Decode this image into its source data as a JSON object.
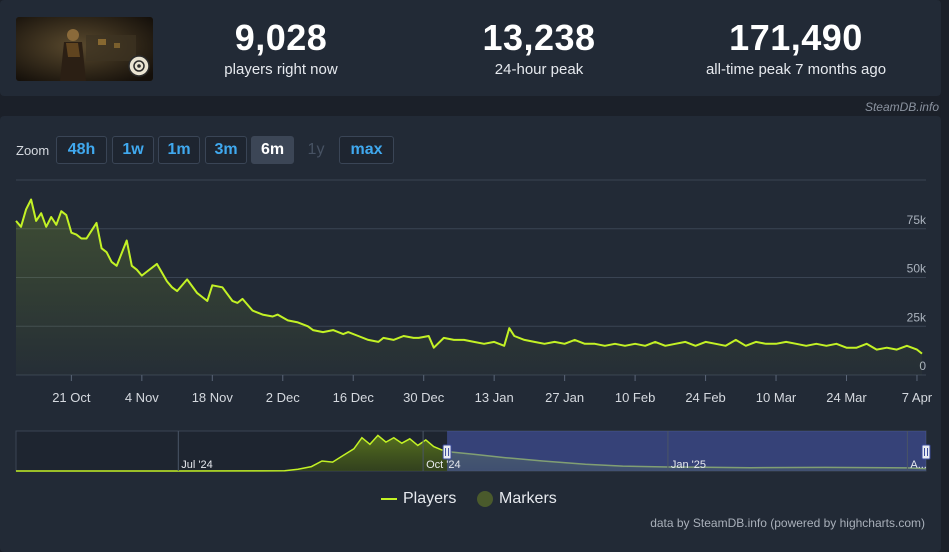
{
  "stats": [
    {
      "value": "9,028",
      "label": "players right now"
    },
    {
      "value": "13,238",
      "label": "24-hour peak"
    },
    {
      "value": "171,490",
      "label": "all-time peak 7 months ago"
    }
  ],
  "credit_top": "SteamDB.info",
  "zoom": {
    "label": "Zoom",
    "buttons": [
      {
        "label": "48h",
        "state": "normal"
      },
      {
        "label": "1w",
        "state": "normal"
      },
      {
        "label": "1m",
        "state": "normal"
      },
      {
        "label": "3m",
        "state": "normal"
      },
      {
        "label": "6m",
        "state": "active"
      },
      {
        "label": "1y",
        "state": "disabled"
      },
      {
        "label": "max",
        "state": "normal"
      }
    ]
  },
  "chart_data": {
    "type": "area",
    "series": [
      {
        "name": "Players",
        "color": "#c3f225",
        "x": [
          "2024-10-10",
          "2024-10-11",
          "2024-10-12",
          "2024-10-13",
          "2024-10-14",
          "2024-10-15",
          "2024-10-16",
          "2024-10-17",
          "2024-10-18",
          "2024-10-19",
          "2024-10-20",
          "2024-10-21",
          "2024-10-22",
          "2024-10-23",
          "2024-10-24",
          "2024-10-25",
          "2024-10-26",
          "2024-10-27",
          "2024-10-28",
          "2024-10-29",
          "2024-10-30",
          "2024-11-01",
          "2024-11-02",
          "2024-11-03",
          "2024-11-04",
          "2024-11-05",
          "2024-11-07",
          "2024-11-09",
          "2024-11-10",
          "2024-11-11",
          "2024-11-13",
          "2024-11-15",
          "2024-11-16",
          "2024-11-17",
          "2024-11-18",
          "2024-11-20",
          "2024-11-22",
          "2024-11-23",
          "2024-11-24",
          "2024-11-26",
          "2024-11-28",
          "2024-11-30",
          "2024-12-01",
          "2024-12-03",
          "2024-12-05",
          "2024-12-07",
          "2024-12-08",
          "2024-12-10",
          "2024-12-12",
          "2024-12-14",
          "2024-12-15",
          "2024-12-17",
          "2024-12-19",
          "2024-12-21",
          "2024-12-22",
          "2024-12-24",
          "2024-12-26",
          "2024-12-28",
          "2024-12-29",
          "2024-12-31",
          "2025-01-01",
          "2025-01-03",
          "2025-01-05",
          "2025-01-07",
          "2025-01-09",
          "2025-01-11",
          "2025-01-13",
          "2025-01-15",
          "2025-01-16",
          "2025-01-17",
          "2025-01-19",
          "2025-01-21",
          "2025-01-23",
          "2025-01-25",
          "2025-01-27",
          "2025-01-29",
          "2025-01-31",
          "2025-02-02",
          "2025-02-04",
          "2025-02-06",
          "2025-02-08",
          "2025-02-10",
          "2025-02-12",
          "2025-02-14",
          "2025-02-16",
          "2025-02-18",
          "2025-02-20",
          "2025-02-22",
          "2025-02-24",
          "2025-02-26",
          "2025-02-28",
          "2025-03-02",
          "2025-03-04",
          "2025-03-06",
          "2025-03-08",
          "2025-03-10",
          "2025-03-12",
          "2025-03-14",
          "2025-03-16",
          "2025-03-18",
          "2025-03-20",
          "2025-03-22",
          "2025-03-24",
          "2025-03-26",
          "2025-03-28",
          "2025-03-30",
          "2025-04-01",
          "2025-04-03",
          "2025-04-05",
          "2025-04-07",
          "2025-04-08"
        ],
        "y": [
          79000,
          76000,
          85000,
          90000,
          79000,
          83000,
          76000,
          81000,
          77000,
          84000,
          82000,
          73000,
          72000,
          70000,
          70000,
          74000,
          78000,
          65000,
          63000,
          58000,
          56000,
          69000,
          56000,
          54000,
          51000,
          53000,
          57000,
          48000,
          45000,
          43000,
          49000,
          42000,
          40000,
          38000,
          46000,
          45000,
          38000,
          37000,
          39000,
          33000,
          31000,
          30000,
          31000,
          28000,
          27000,
          25000,
          23000,
          22000,
          23000,
          21000,
          22000,
          20000,
          18000,
          17000,
          19000,
          18000,
          20000,
          19000,
          19000,
          20000,
          14000,
          19000,
          18000,
          18000,
          17000,
          16000,
          17000,
          15000,
          24000,
          20000,
          18000,
          17000,
          16000,
          17000,
          16000,
          18000,
          16000,
          16000,
          15000,
          16000,
          15000,
          16000,
          15000,
          17000,
          15000,
          16000,
          17000,
          15000,
          17000,
          16000,
          15000,
          18000,
          15000,
          17000,
          16000,
          16000,
          17000,
          16000,
          15000,
          16000,
          15000,
          16000,
          14000,
          14000,
          16000,
          13000,
          14000,
          13000,
          15000,
          13000,
          11000
        ]
      },
      {
        "name": "Markers",
        "color": "#4a5a2c",
        "values": []
      }
    ],
    "y_ticks": [
      "0",
      "25k",
      "50k",
      "75k"
    ],
    "y_range": [
      0,
      100000
    ],
    "x_ticks": [
      "21 Oct",
      "4 Nov",
      "18 Nov",
      "2 Dec",
      "16 Dec",
      "30 Dec",
      "13 Jan",
      "27 Jan",
      "10 Feb",
      "24 Feb",
      "10 Mar",
      "24 Mar",
      "7 Apr"
    ],
    "x_tick_dates": [
      "2024-10-21",
      "2024-11-04",
      "2024-11-18",
      "2024-12-02",
      "2024-12-16",
      "2024-12-30",
      "2025-01-13",
      "2025-01-27",
      "2025-02-10",
      "2025-02-24",
      "2025-03-10",
      "2025-03-24",
      "2025-04-07"
    ],
    "x_range": [
      "2024-10-10",
      "2025-04-08"
    ],
    "navigator": {
      "labels": [
        "Jul '24",
        "Oct '24",
        "Jan '25",
        "A..."
      ],
      "label_dates": [
        "2024-07-01",
        "2024-10-01",
        "2025-01-01",
        "2025-04-01"
      ],
      "x_range": [
        "2024-05-01",
        "2025-04-08"
      ],
      "y_range": [
        0,
        180000
      ],
      "selected_range": [
        "2024-10-10",
        "2025-04-08"
      ],
      "y": [
        [
          "2024-05-01",
          0
        ],
        [
          "2024-06-01",
          0
        ],
        [
          "2024-07-01",
          0
        ],
        [
          "2024-08-01",
          500
        ],
        [
          "2024-08-10",
          1000
        ],
        [
          "2024-08-15",
          8000
        ],
        [
          "2024-08-20",
          20000
        ],
        [
          "2024-08-24",
          45000
        ],
        [
          "2024-08-28",
          40000
        ],
        [
          "2024-09-01",
          70000
        ],
        [
          "2024-09-05",
          100000
        ],
        [
          "2024-09-08",
          150000
        ],
        [
          "2024-09-11",
          120000
        ],
        [
          "2024-09-14",
          160000
        ],
        [
          "2024-09-17",
          130000
        ],
        [
          "2024-09-20",
          150000
        ],
        [
          "2024-09-23",
          125000
        ],
        [
          "2024-09-26",
          145000
        ],
        [
          "2024-09-29",
          115000
        ],
        [
          "2024-10-02",
          140000
        ],
        [
          "2024-10-05",
          110000
        ],
        [
          "2024-10-08",
          95000
        ],
        [
          "2024-10-12",
          85000
        ],
        [
          "2024-10-20",
          75000
        ],
        [
          "2024-11-01",
          60000
        ],
        [
          "2024-11-15",
          45000
        ],
        [
          "2024-12-01",
          30000
        ],
        [
          "2024-12-15",
          22000
        ],
        [
          "2025-01-01",
          18000
        ],
        [
          "2025-01-15",
          17000
        ],
        [
          "2025-02-01",
          15000
        ],
        [
          "2025-03-01",
          16000
        ],
        [
          "2025-04-01",
          14000
        ],
        [
          "2025-04-08",
          11000
        ]
      ]
    },
    "legend_position": "bottom-center",
    "grid": true
  },
  "legend": [
    {
      "label": "Players"
    },
    {
      "label": "Markers"
    }
  ],
  "credit_bottom": "data by SteamDB.info (powered by highcharts.com)"
}
